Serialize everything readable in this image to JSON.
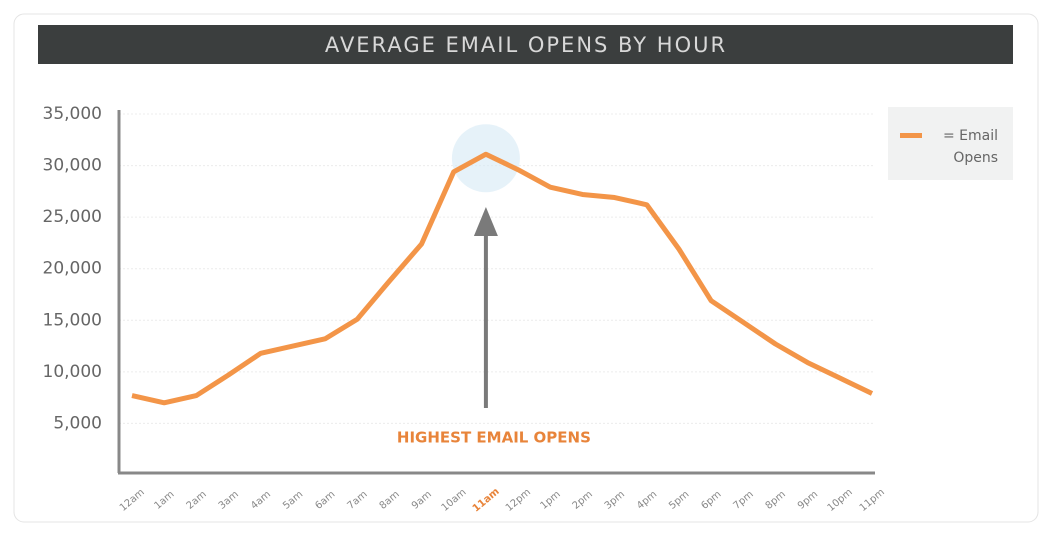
{
  "chart_data": {
    "type": "line",
    "title": "AVERAGE EMAIL OPENS BY HOUR",
    "categories": [
      "12am",
      "1am",
      "2am",
      "3am",
      "4am",
      "5am",
      "6am",
      "7am",
      "8am",
      "9am",
      "10am",
      "11am",
      "12pm",
      "1pm",
      "2pm",
      "3pm",
      "4pm",
      "5pm",
      "6pm",
      "7pm",
      "8pm",
      "9pm",
      "10pm",
      "11pm"
    ],
    "series": [
      {
        "name": "Email Opens",
        "color": "#f39548",
        "values": [
          7700,
          7000,
          7700,
          9700,
          11800,
          12500,
          13200,
          15100,
          18800,
          22400,
          29400,
          31100,
          29600,
          27900,
          27200,
          26900,
          26200,
          21900,
          16900,
          14800,
          12700,
          10900,
          9400,
          7900
        ]
      }
    ],
    "ylim": [
      0,
      35000
    ],
    "yticks": [
      {
        "value": 5000,
        "label": "5,000"
      },
      {
        "value": 10000,
        "label": "10,000"
      },
      {
        "value": 15000,
        "label": "15,000"
      },
      {
        "value": 20000,
        "label": "20,000"
      },
      {
        "value": 25000,
        "label": "25,000"
      },
      {
        "value": 30000,
        "label": "30,000"
      },
      {
        "value": 35000,
        "label": "35,000"
      }
    ],
    "grid": true,
    "legend": {
      "position": "right",
      "prefix": "="
    },
    "annotation": {
      "text": "HIGHEST EMAIL OPENS",
      "category": "11am",
      "color": "#e8843a"
    }
  }
}
